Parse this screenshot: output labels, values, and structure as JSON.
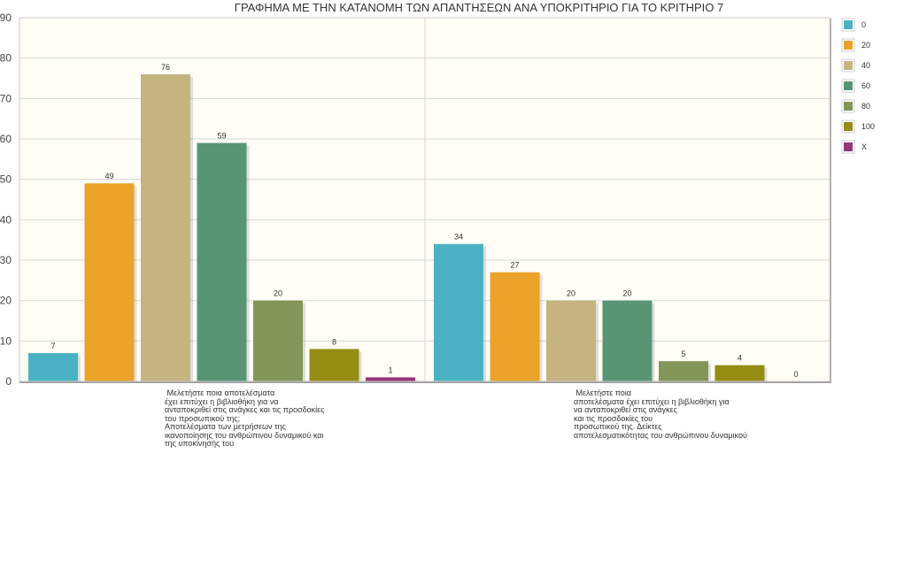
{
  "chart_data": {
    "type": "bar",
    "title": "ΓΡΑΦΗΜΑ ΜΕ ΤΗΝ ΚΑΤΑΝΟΜΗ ΤΩΝ ΑΠΑΝΤΗΣΕΩΝ ΑΝΑ ΥΠΟΚΡΙΤΗΡΙΟ ΓΙΑ ΤΟ ΚΡΙΤΗΡΙΟ 7",
    "xlabel": "",
    "ylabel": "",
    "ylim": [
      0,
      90
    ],
    "yticks": [
      "0",
      "10",
      "20",
      "30",
      "40",
      "50",
      "60",
      "70",
      "80",
      "90"
    ],
    "grid": true,
    "legend_position": "right",
    "categories": [
      " Μελετήστε ποια αποτελέσματα\nέχει επιτύχει η βιβλιοθήκη για να\nανταποκριθεί στις ανάγκες και τις προσδοκίες\nτου προσωπικού της;\nΑποτελέσματα των μετρήσεων της\nικανοποίησης του ανθρώπινου δυναμικού και\nτης υποκίνησής του",
      " Μελετήστε ποια\nαποτελέσματα έχει επιτύχει η βιβλιοθήκη για\nνα ανταποκριθεί στις ανάγκες\nκαι τις προσδοκίες του\nπροσωπικού της. Δείκτες\nαποτελεσματικότητας του ανθρώπινου δυναμικού"
    ],
    "series": [
      {
        "name": "0",
        "color": "#4bb2c5",
        "values": [
          7,
          34
        ]
      },
      {
        "name": "20",
        "color": "#eaa228",
        "values": [
          49,
          27
        ]
      },
      {
        "name": "40",
        "color": "#c5b47f",
        "values": [
          76,
          20
        ]
      },
      {
        "name": "60",
        "color": "#579575",
        "values": [
          59,
          20
        ]
      },
      {
        "name": "80",
        "color": "#839557",
        "values": [
          20,
          5
        ]
      },
      {
        "name": "100",
        "color": "#958c12",
        "values": [
          8,
          4
        ]
      },
      {
        "name": "X",
        "color": "#953579",
        "values": [
          1,
          0
        ]
      }
    ]
  }
}
